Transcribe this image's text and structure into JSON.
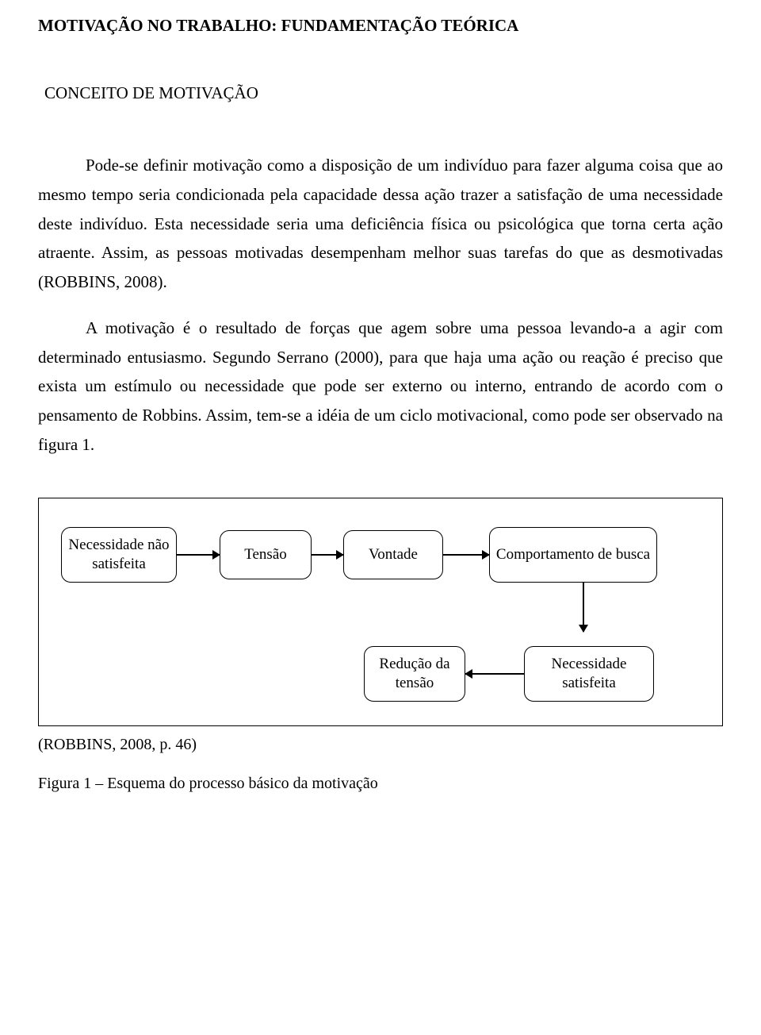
{
  "title": "MOTIVAÇÃO NO TRABALHO: FUNDAMENTAÇÃO TEÓRICA",
  "subtitle": "CONCEITO DE MOTIVAÇÃO",
  "paragraphs": {
    "p1": "Pode-se definir motivação como a disposição de um indivíduo para fazer alguma coisa que ao mesmo tempo seria condicionada pela capacidade dessa ação trazer a satisfação de uma necessidade deste indivíduo.  Esta necessidade seria uma deficiência física ou psicológica que torna certa ação atraente. Assim, as pessoas motivadas desempenham melhor suas tarefas do que as desmotivadas (ROBBINS, 2008).",
    "p2": "A motivação é o resultado de forças que agem sobre uma pessoa levando-a a agir com determinado entusiasmo. Segundo Serrano (2000), para que haja uma ação ou reação é preciso que exista um estímulo ou necessidade que pode ser externo ou interno, entrando de acordo com o pensamento de Robbins. Assim, tem-se a idéia de um ciclo motivacional, como pode ser observado na figura 1."
  },
  "diagram": {
    "type": "flowchart",
    "border_color": "#000000",
    "background_color": "#ffffff",
    "node_border_radius": 12,
    "node_border_color": "#000000",
    "font_size": 19,
    "nodes": {
      "need_unsat": "Necessidade não satisfeita",
      "tension": "Tensão",
      "will": "Vontade",
      "behavior": "Comportamento de busca",
      "reduce": "Redução da tensão",
      "need_sat": "Necessidade satisfeita"
    },
    "edges": [
      {
        "from": "need_unsat",
        "to": "tension",
        "dir": "right"
      },
      {
        "from": "tension",
        "to": "will",
        "dir": "right"
      },
      {
        "from": "will",
        "to": "behavior",
        "dir": "right"
      },
      {
        "from": "behavior",
        "to": "need_sat",
        "dir": "down"
      },
      {
        "from": "need_sat",
        "to": "reduce",
        "dir": "left"
      }
    ]
  },
  "citation": "(ROBBINS, 2008, p. 46)",
  "figure_caption": "Figura 1 – Esquema do processo básico da motivação"
}
